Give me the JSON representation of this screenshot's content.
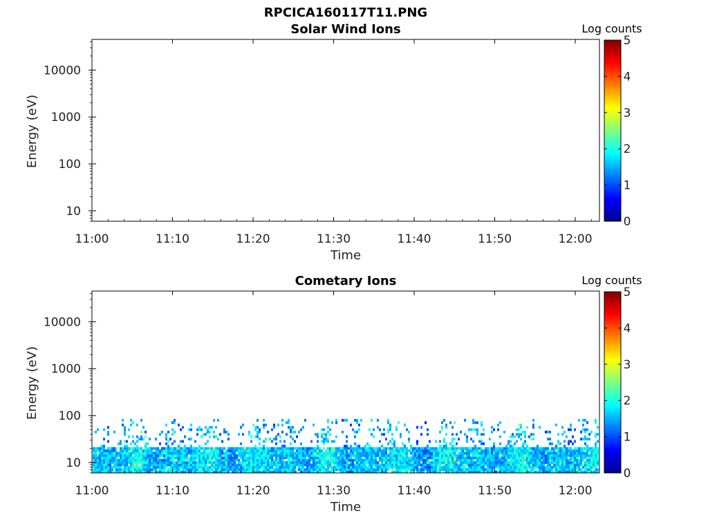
{
  "figure_title": "RPCICA160117T11.PNG",
  "chart_data": [
    {
      "type": "heatmap",
      "title": "Solar Wind Ions",
      "xlabel": "Time",
      "ylabel": "Energy (eV)",
      "x_tick_labels": [
        "11:00",
        "11:10",
        "11:20",
        "11:30",
        "11:40",
        "11:50",
        "12:00"
      ],
      "x_range": [
        "11:00",
        "12:03"
      ],
      "y_scale": "log",
      "y_tick_labels": [
        "10",
        "100",
        "1000",
        "10000"
      ],
      "y_range": [
        6,
        45000
      ],
      "colorbar": {
        "label": "Log counts",
        "ticks": [
          "0",
          "1",
          "2",
          "3",
          "4",
          "5"
        ],
        "range": [
          0,
          5
        ],
        "colormap": "jet"
      },
      "grid": false,
      "data_summary": "no counts recorded"
    },
    {
      "type": "heatmap",
      "title": "Cometary Ions",
      "xlabel": "Time",
      "ylabel": "Energy (eV)",
      "x_tick_labels": [
        "11:00",
        "11:10",
        "11:20",
        "11:30",
        "11:40",
        "11:50",
        "12:00"
      ],
      "x_range": [
        "11:00",
        "12:03"
      ],
      "y_scale": "log",
      "y_tick_labels": [
        "10",
        "100",
        "1000",
        "10000"
      ],
      "y_range": [
        6,
        45000
      ],
      "colorbar": {
        "label": "Log counts",
        "ticks": [
          "0",
          "1",
          "2",
          "3",
          "4",
          "5"
        ],
        "range": [
          0,
          5
        ],
        "colormap": "jet"
      },
      "grid": false,
      "bands": [
        {
          "energy_ev": [
            6,
            22
          ],
          "log_counts_typical": [
            0.8,
            2.2
          ],
          "coverage": "continuous"
        },
        {
          "energy_ev": [
            22,
            85
          ],
          "log_counts_typical": [
            0.5,
            2.0
          ],
          "coverage": "intermittent"
        }
      ]
    }
  ]
}
